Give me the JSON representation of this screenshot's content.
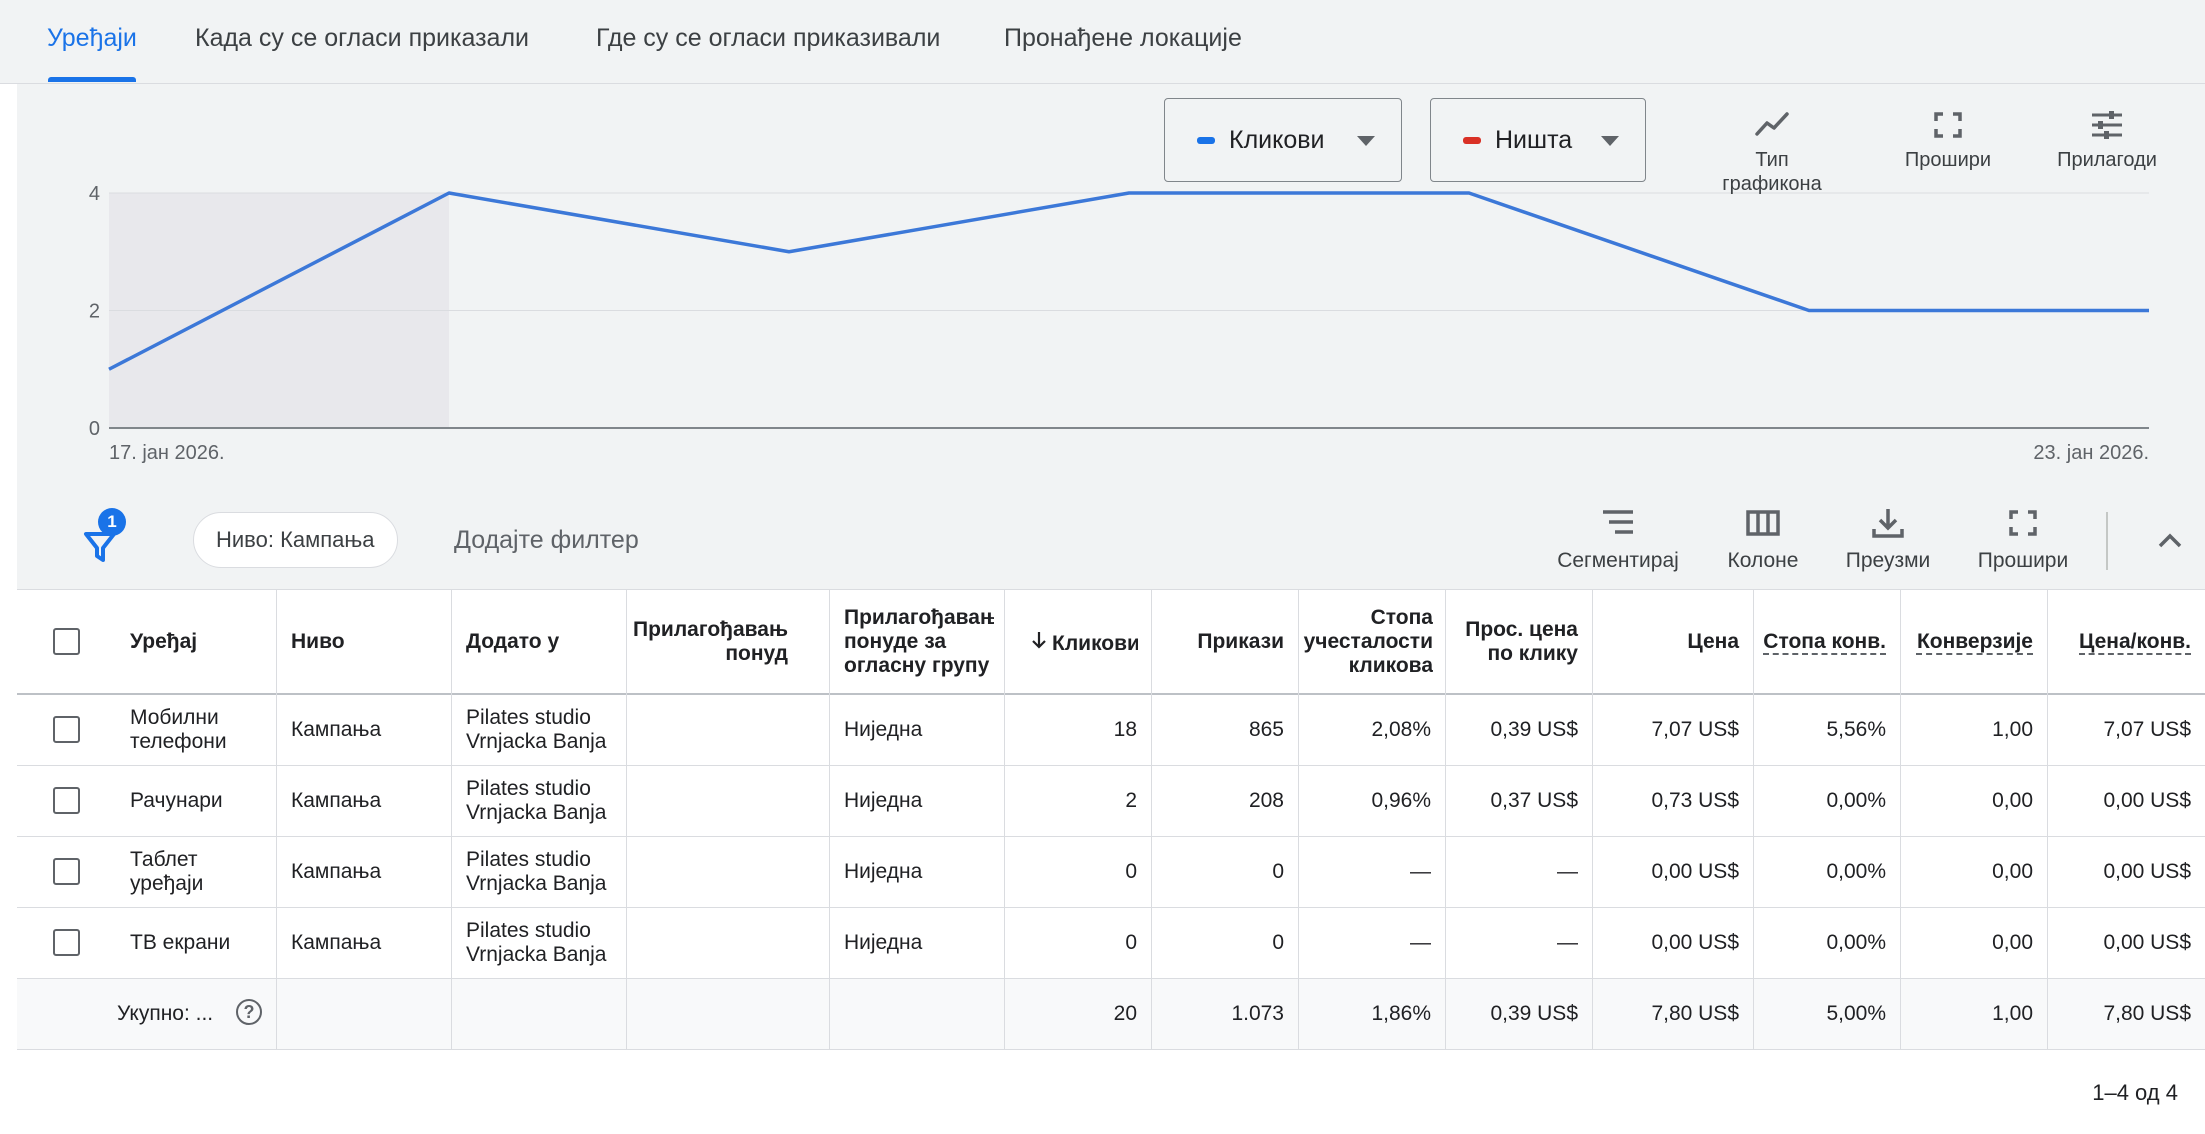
{
  "tabs": [
    {
      "label": "Уређаји",
      "active": true
    },
    {
      "label": "Када су се огласи приказали",
      "active": false
    },
    {
      "label": "Где су се огласи приказивали",
      "active": false
    },
    {
      "label": "Пронађене локације",
      "active": false
    }
  ],
  "chart_controls": {
    "metric1": {
      "label": "Кликови",
      "color": "#1a73e8"
    },
    "metric2": {
      "label": "Ништа",
      "color": "#d93025"
    },
    "chart_type": {
      "label": "Тип графикона",
      "icon": "chart-line-icon"
    },
    "expand": {
      "label": "Прошири",
      "icon": "fullscreen-icon"
    },
    "adjust": {
      "label": "Прилагоди",
      "icon": "tune-icon"
    }
  },
  "chart_data": {
    "type": "line",
    "series": [
      {
        "name": "Кликови",
        "color": "#3c78d8",
        "values": [
          1,
          4,
          3,
          4,
          4,
          2,
          2
        ]
      }
    ],
    "x": [
      "17. јан 2026.",
      "",
      "",
      "",
      "",
      "",
      "23. јан 2026."
    ],
    "x_tick_labels": {
      "first": "17. јан 2026.",
      "last": "23. јан 2026."
    },
    "y_ticks": [
      "0",
      "2",
      "4"
    ],
    "ylim": [
      0,
      4
    ],
    "shaded_range": [
      0,
      1
    ],
    "grid": true
  },
  "filter_bar": {
    "filter_count": "1",
    "chip_label": "Ниво: Кампања",
    "add_filter_label": "Додајте филтер",
    "tools": [
      {
        "label": "Сегментирај",
        "icon": "segment-icon"
      },
      {
        "label": "Колоне",
        "icon": "columns-icon"
      },
      {
        "label": "Преузми",
        "icon": "download-icon"
      },
      {
        "label": "Прошири",
        "icon": "fullscreen-icon"
      }
    ]
  },
  "table": {
    "headers": {
      "device": "Уређај",
      "level": "Ниво",
      "added_to": "Додато у",
      "bid_adj": [
        "Прилагођавањ",
        "понуд"
      ],
      "bid_adj_group": [
        "Прилагођавањ",
        "понуде за",
        "огласну групу"
      ],
      "clicks": "Кликови",
      "impressions": "Прикази",
      "ctr": [
        "Стопа",
        "учесталости",
        "кликова"
      ],
      "avg_cpc": [
        "Прос. цена",
        "по клику"
      ],
      "cost": "Цена",
      "conv_rate": "Стопа конв.",
      "conversions": "Конверзије",
      "cost_per_conv": "Цена/конв."
    },
    "rows": [
      {
        "device": [
          "Мобилни",
          "телефони"
        ],
        "level": "Кампања",
        "added_to": [
          "Pilates studio",
          "Vrnjacka Banja"
        ],
        "bid_adj": "",
        "bid_adj_group": "Ниједна",
        "clicks": "18",
        "impressions": "865",
        "ctr": "2,08%",
        "avg_cpc": "0,39 US$",
        "cost": "7,07 US$",
        "conv_rate": "5,56%",
        "conversions": "1,00",
        "cost_per_conv": "7,07 US$"
      },
      {
        "device": [
          "Рачунари",
          ""
        ],
        "level": "Кампања",
        "added_to": [
          "Pilates studio",
          "Vrnjacka Banja"
        ],
        "bid_adj": "",
        "bid_adj_group": "Ниједна",
        "clicks": "2",
        "impressions": "208",
        "ctr": "0,96%",
        "avg_cpc": "0,37 US$",
        "cost": "0,73 US$",
        "conv_rate": "0,00%",
        "conversions": "0,00",
        "cost_per_conv": "0,00 US$"
      },
      {
        "device": [
          "Таблет",
          "уређаји"
        ],
        "level": "Кампања",
        "added_to": [
          "Pilates studio",
          "Vrnjacka Banja"
        ],
        "bid_adj": "",
        "bid_adj_group": "Ниједна",
        "clicks": "0",
        "impressions": "0",
        "ctr": "—",
        "avg_cpc": "—",
        "cost": "0,00 US$",
        "conv_rate": "0,00%",
        "conversions": "0,00",
        "cost_per_conv": "0,00 US$"
      },
      {
        "device": [
          "ТВ екрани",
          ""
        ],
        "level": "Кампања",
        "added_to": [
          "Pilates studio",
          "Vrnjacka Banja"
        ],
        "bid_adj": "",
        "bid_adj_group": "Ниједна",
        "clicks": "0",
        "impressions": "0",
        "ctr": "—",
        "avg_cpc": "—",
        "cost": "0,00 US$",
        "conv_rate": "0,00%",
        "conversions": "0,00",
        "cost_per_conv": "0,00 US$"
      }
    ],
    "total": {
      "label": "Укупно: ...",
      "clicks": "20",
      "impressions": "1.073",
      "ctr": "1,86%",
      "avg_cpc": "0,39 US$",
      "cost": "7,80 US$",
      "conv_rate": "5,00%",
      "conversions": "1,00",
      "cost_per_conv": "7,80 US$"
    }
  },
  "pagination": "1–4 од 4"
}
